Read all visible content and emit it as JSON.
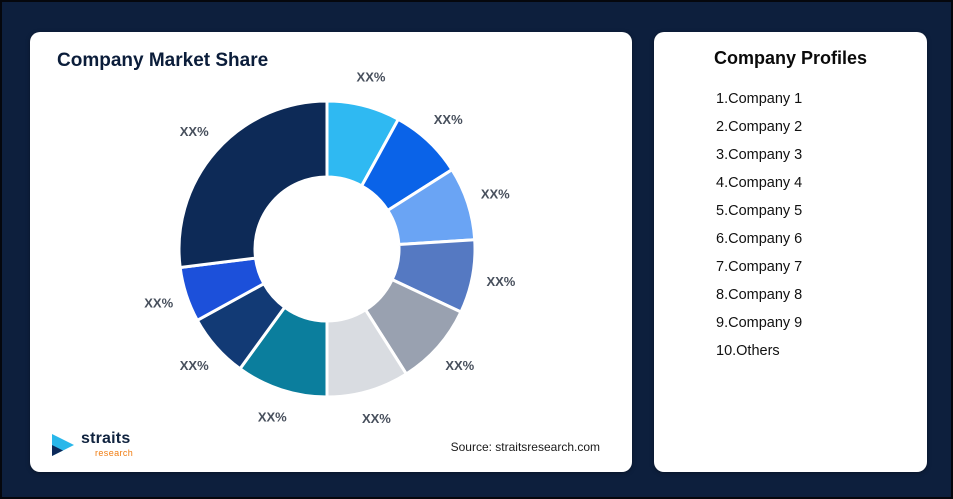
{
  "theme": {
    "background": "#0d1f3d",
    "card_bg": "#ffffff",
    "title_color": "#0b1d3a",
    "slice_label_color": "#474f5c",
    "logo_sub_color": "#f07d12",
    "logo_icon_cyan": "#29b7ea",
    "logo_icon_navy": "#0d2a5a"
  },
  "market_share_card": {
    "title": "Company Market Share",
    "source": "Source: straitsresearch.com",
    "logo": {
      "brand": "straits",
      "sub": "research"
    }
  },
  "profiles_card": {
    "title": "Company Profiles",
    "items": [
      {
        "label": "1.Company 1"
      },
      {
        "label": "2.Company 2"
      },
      {
        "label": "3.Company 3"
      },
      {
        "label": "4.Company 4"
      },
      {
        "label": "5.Company 5"
      },
      {
        "label": "6.Company 6"
      },
      {
        "label": "7.Company 7"
      },
      {
        "label": "8.Company 8"
      },
      {
        "label": "9.Company 9"
      },
      {
        "label": "10.Others"
      }
    ]
  },
  "chart_data": {
    "type": "pie",
    "variant": "donut",
    "title": "Company Market Share",
    "value_labels_shown_as": "XX%",
    "start_angle_deg": 0,
    "direction": "clockwise",
    "legend": "none",
    "series": [
      {
        "name": "Company 1",
        "label": "XX%",
        "value": 8,
        "color": "#2fb9f2"
      },
      {
        "name": "Company 2",
        "label": "XX%",
        "value": 8,
        "color": "#0a63e8"
      },
      {
        "name": "Company 3",
        "label": "XX%",
        "value": 8,
        "color": "#6aa4f4"
      },
      {
        "name": "Company 4",
        "label": "XX%",
        "value": 8,
        "color": "#5579c2"
      },
      {
        "name": "Company 5",
        "label": "XX%",
        "value": 9,
        "color": "#99a1b0"
      },
      {
        "name": "Company 6",
        "label": "XX%",
        "value": 9,
        "color": "#d9dce1"
      },
      {
        "name": "Company 7",
        "label": "XX%",
        "value": 10,
        "color": "#0b7e9d"
      },
      {
        "name": "Company 8",
        "label": "XX%",
        "value": 7,
        "color": "#123a75"
      },
      {
        "name": "Company 9",
        "label": "XX%",
        "value": 6,
        "color": "#1c50da"
      },
      {
        "name": "Others",
        "label": "XX%",
        "value": 27,
        "color": "#0d2a57"
      }
    ]
  }
}
